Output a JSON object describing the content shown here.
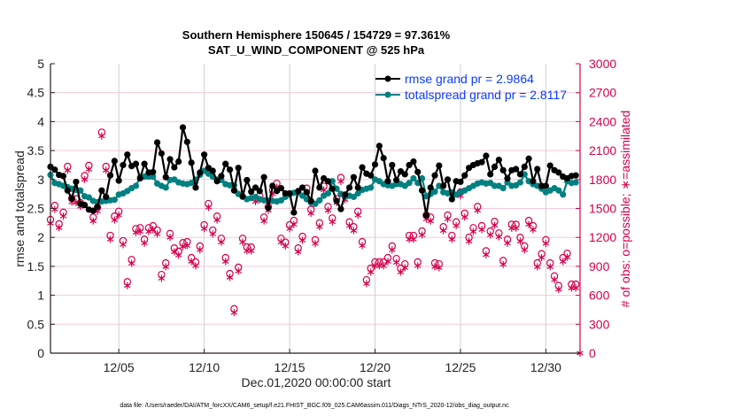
{
  "chart_data": {
    "type": "line",
    "title": "Southern Hemisphere 150645 / 154729 = 97.361%",
    "subtitle": "SAT_U_WIND_COMPONENT @ 525 hPa",
    "xlabel": "Dec.01,2020 00:00:00 start",
    "ylabel": "rmse and totalspread",
    "ylabel_right": "# of obs: o=possible; ∗=assimilated",
    "footer": "data file: /Users/raeder/DAI/ATM_forcXX/CAM6_setup/f.e21.FHIST_BGC.f09_025.CAM6assim.011/Diags_NTrS_2020-12/obs_diag_output.nc",
    "ylim": [
      0,
      5
    ],
    "ylim_right": [
      0,
      3000
    ],
    "xlim": [
      "2020-12-01 00:00",
      "2021-01-01 00:00"
    ],
    "yticks": [
      "0",
      "0.5",
      "1",
      "1.5",
      "2",
      "2.5",
      "3",
      "3.5",
      "4",
      "4.5",
      "5"
    ],
    "yticks_right": [
      "0",
      "300",
      "600",
      "900",
      "1200",
      "1500",
      "1800",
      "2100",
      "2400",
      "2700",
      "3000"
    ],
    "xticks": [
      {
        "label": "12/05",
        "date": "2020-12-05"
      },
      {
        "label": "12/10",
        "date": "2020-12-10"
      },
      {
        "label": "12/15",
        "date": "2020-12-15"
      },
      {
        "label": "12/20",
        "date": "2020-12-20"
      },
      {
        "label": "12/25",
        "date": "2020-12-25"
      },
      {
        "label": "12/30",
        "date": "2020-12-30"
      }
    ],
    "grid": true,
    "legend_position": "top-right",
    "colors": {
      "rmse": "#000000",
      "totalspread": "#008080",
      "obs": "#d4004c",
      "grid": "#f4c9dc",
      "vgrid": "#d0d0d0",
      "legend_text": "#0a3cff"
    },
    "x": [
      "12/01 00",
      "12/01 06",
      "12/01 12",
      "12/01 18",
      "12/02 00",
      "12/02 06",
      "12/02 12",
      "12/02 18",
      "12/03 00",
      "12/03 06",
      "12/03 12",
      "12/03 18",
      "12/04 00",
      "12/04 06",
      "12/04 12",
      "12/04 18",
      "12/05 00",
      "12/05 06",
      "12/05 12",
      "12/05 18",
      "12/06 00",
      "12/06 06",
      "12/06 12",
      "12/06 18",
      "12/07 00",
      "12/07 06",
      "12/07 12",
      "12/07 18",
      "12/08 00",
      "12/08 06",
      "12/08 12",
      "12/08 18",
      "12/09 00",
      "12/09 06",
      "12/09 12",
      "12/09 18",
      "12/10 00",
      "12/10 06",
      "12/10 12",
      "12/10 18",
      "12/11 00",
      "12/11 06",
      "12/11 12",
      "12/11 18",
      "12/12 00",
      "12/12 06",
      "12/12 12",
      "12/12 18",
      "12/13 00",
      "12/13 06",
      "12/13 12",
      "12/13 18",
      "12/14 00",
      "12/14 06",
      "12/14 12",
      "12/14 18",
      "12/15 00",
      "12/15 06",
      "12/15 12",
      "12/15 18",
      "12/16 00",
      "12/16 06",
      "12/16 12",
      "12/16 18",
      "12/17 00",
      "12/17 06",
      "12/17 12",
      "12/17 18",
      "12/18 00",
      "12/18 06",
      "12/18 12",
      "12/18 18",
      "12/19 00",
      "12/19 06",
      "12/19 12",
      "12/19 18",
      "12/20 00",
      "12/20 06",
      "12/20 12",
      "12/20 18",
      "12/21 00",
      "12/21 06",
      "12/21 12",
      "12/21 18",
      "12/22 00",
      "12/22 06",
      "12/22 12",
      "12/22 18",
      "12/23 00",
      "12/23 06",
      "12/23 12",
      "12/23 18",
      "12/24 00",
      "12/24 06",
      "12/24 12",
      "12/24 18",
      "12/25 00",
      "12/25 06",
      "12/25 12",
      "12/25 18",
      "12/26 00",
      "12/26 06",
      "12/26 12",
      "12/26 18",
      "12/27 00",
      "12/27 06",
      "12/27 12",
      "12/27 18",
      "12/28 00",
      "12/28 06",
      "12/28 12",
      "12/28 18",
      "12/29 00",
      "12/29 06",
      "12/29 12",
      "12/29 18",
      "12/30 00",
      "12/30 06",
      "12/30 12",
      "12/30 18",
      "12/31 00",
      "12/31 06",
      "12/31 12",
      "12/31 18",
      "01/01 00"
    ],
    "series": [
      {
        "name": "rmse grand pr = 2.9864",
        "axis": "left",
        "marker": "asterisk-dot",
        "values": [
          3.22,
          3.17,
          3.08,
          3.06,
          2.81,
          2.67,
          2.96,
          2.58,
          2.56,
          2.48,
          2.46,
          2.53,
          2.81,
          2.7,
          3.07,
          3.32,
          2.98,
          3.25,
          3.43,
          3.23,
          3.27,
          3.02,
          3.27,
          3.12,
          3.13,
          3.64,
          3.45,
          3.04,
          3.35,
          3.21,
          3.31,
          3.9,
          3.65,
          3.29,
          2.86,
          3.12,
          3.43,
          3.2,
          3.15,
          2.97,
          3.06,
          3.27,
          3.17,
          2.81,
          3.2,
          2.71,
          2.99,
          2.79,
          2.86,
          2.8,
          3.04,
          2.51,
          2.89,
          2.8,
          2.85,
          2.76,
          2.76,
          2.43,
          2.8,
          2.86,
          2.78,
          2.63,
          3.15,
          2.86,
          3.02,
          2.97,
          2.84,
          2.63,
          2.49,
          2.74,
          2.86,
          3.04,
          2.86,
          3.21,
          3.1,
          3.07,
          3.26,
          3.58,
          3.37,
          2.97,
          3.25,
          2.99,
          3.14,
          3.09,
          3.25,
          3.31,
          3.13,
          2.81,
          2.38,
          2.86,
          3.07,
          3.24,
          2.89,
          3.0,
          2.66,
          2.97,
          2.96,
          3.07,
          3.2,
          3.25,
          3.28,
          3.3,
          3.41,
          3.09,
          3.22,
          3.34,
          3.16,
          3.02,
          3.16,
          3.18,
          3.09,
          3.22,
          3.36,
          2.97,
          3.18,
          2.89,
          2.89,
          3.24,
          3.16,
          3.12,
          3.05,
          3.02,
          3.06,
          3.07,
          null
        ]
      },
      {
        "name": "totalspread grand pr = 2.8117",
        "axis": "left",
        "marker": "dot",
        "values": [
          3.08,
          2.94,
          2.92,
          2.89,
          2.87,
          2.84,
          2.82,
          2.81,
          2.71,
          2.69,
          2.63,
          2.61,
          2.62,
          2.63,
          2.64,
          2.65,
          2.74,
          2.76,
          2.8,
          2.85,
          2.89,
          3.04,
          3.05,
          3.05,
          3.05,
          2.93,
          2.89,
          2.86,
          2.99,
          3.0,
          2.95,
          2.93,
          2.92,
          2.94,
          3.0,
          3.08,
          3.15,
          3.1,
          3.05,
          3.0,
          2.99,
          2.92,
          2.9,
          2.9,
          2.75,
          2.7,
          2.66,
          2.68,
          2.7,
          2.66,
          2.64,
          2.63,
          2.63,
          2.62,
          2.64,
          2.7,
          2.74,
          2.77,
          2.78,
          2.72,
          2.66,
          2.6,
          2.58,
          2.64,
          2.72,
          2.76,
          2.97,
          2.84,
          2.75,
          2.7,
          2.72,
          2.7,
          2.76,
          2.82,
          2.84,
          2.86,
          3.0,
          2.97,
          2.92,
          2.9,
          2.89,
          2.92,
          2.92,
          2.89,
          2.94,
          3.02,
          2.94,
          3.02,
          2.71,
          2.75,
          2.79,
          2.89,
          2.78,
          2.76,
          2.78,
          2.74,
          2.78,
          2.81,
          2.85,
          2.89,
          2.93,
          2.95,
          2.93,
          2.94,
          2.89,
          2.89,
          2.85,
          2.95,
          2.89,
          2.9,
          2.95,
          3.09,
          2.97,
          2.92,
          2.89,
          2.84,
          2.78,
          2.81,
          2.85,
          2.81,
          2.74,
          2.97,
          2.94,
          2.95,
          null
        ]
      },
      {
        "name": "obs possible",
        "axis": "right",
        "marker": "circle",
        "values": [
          1385,
          1530,
          1340,
          1460,
          1935,
          1605,
          1600,
          1560,
          1840,
          1945,
          1410,
          1510,
          2290,
          1935,
          1220,
          1420,
          1470,
          1165,
          740,
          970,
          1290,
          1300,
          1180,
          1300,
          1320,
          1275,
          815,
          935,
          1240,
          1090,
          1055,
          1145,
          1155,
          990,
          945,
          1110,
          1330,
          1550,
          1275,
          1420,
          1190,
          990,
          825,
          460,
          890,
          1190,
          1100,
          1100,
          1610,
          1630,
          1410,
          1520,
          1690,
          1760,
          1190,
          1150,
          1330,
          1375,
          1090,
          1210,
          1710,
          1490,
          1175,
          1350,
          1730,
          1520,
          1400,
          1600,
          1820,
          1630,
          1360,
          1310,
          1470,
          1155,
          760,
          880,
          945,
          945,
          945,
          990,
          1110,
          980,
          880,
          925,
          1220,
          1220,
          945,
          1265,
          1430,
          1410,
          935,
          925,
          1310,
          1430,
          1220,
          1360,
          1670,
          1450,
          1200,
          1300,
          1520,
          1320,
          1060,
          1265,
          1365,
          1245,
          960,
          1180,
          1335,
          1335,
          1200,
          1110,
          1375,
          1320,
          935,
          1030,
          1175,
          935,
          800,
          700,
          990,
          1035,
          715,
          715,
          0
        ]
      },
      {
        "name": "obs assimilated",
        "axis": "right",
        "marker": "asterisk",
        "values": [
          1345,
          1490,
          1300,
          1420,
          1895,
          1565,
          1560,
          1520,
          1800,
          1905,
          1370,
          1470,
          2250,
          1895,
          1180,
          1380,
          1430,
          1125,
          700,
          930,
          1250,
          1260,
          1140,
          1260,
          1280,
          1235,
          775,
          895,
          1200,
          1050,
          1015,
          1105,
          1115,
          950,
          905,
          1070,
          1290,
          1510,
          1235,
          1380,
          1150,
          950,
          785,
          420,
          850,
          1150,
          1060,
          1060,
          1570,
          1590,
          1370,
          1480,
          1650,
          1720,
          1150,
          1110,
          1290,
          1335,
          1050,
          1170,
          1670,
          1450,
          1135,
          1310,
          1690,
          1480,
          1360,
          1560,
          1780,
          1590,
          1320,
          1270,
          1430,
          1115,
          720,
          840,
          905,
          905,
          905,
          950,
          1070,
          940,
          840,
          885,
          1180,
          1180,
          905,
          1225,
          1390,
          1370,
          895,
          885,
          1270,
          1390,
          1180,
          1320,
          1630,
          1410,
          1160,
          1260,
          1480,
          1280,
          1020,
          1225,
          1325,
          1205,
          920,
          1140,
          1295,
          1295,
          1160,
          1070,
          1335,
          1280,
          895,
          990,
          1135,
          895,
          760,
          660,
          950,
          995,
          675,
          675,
          0
        ]
      }
    ]
  }
}
